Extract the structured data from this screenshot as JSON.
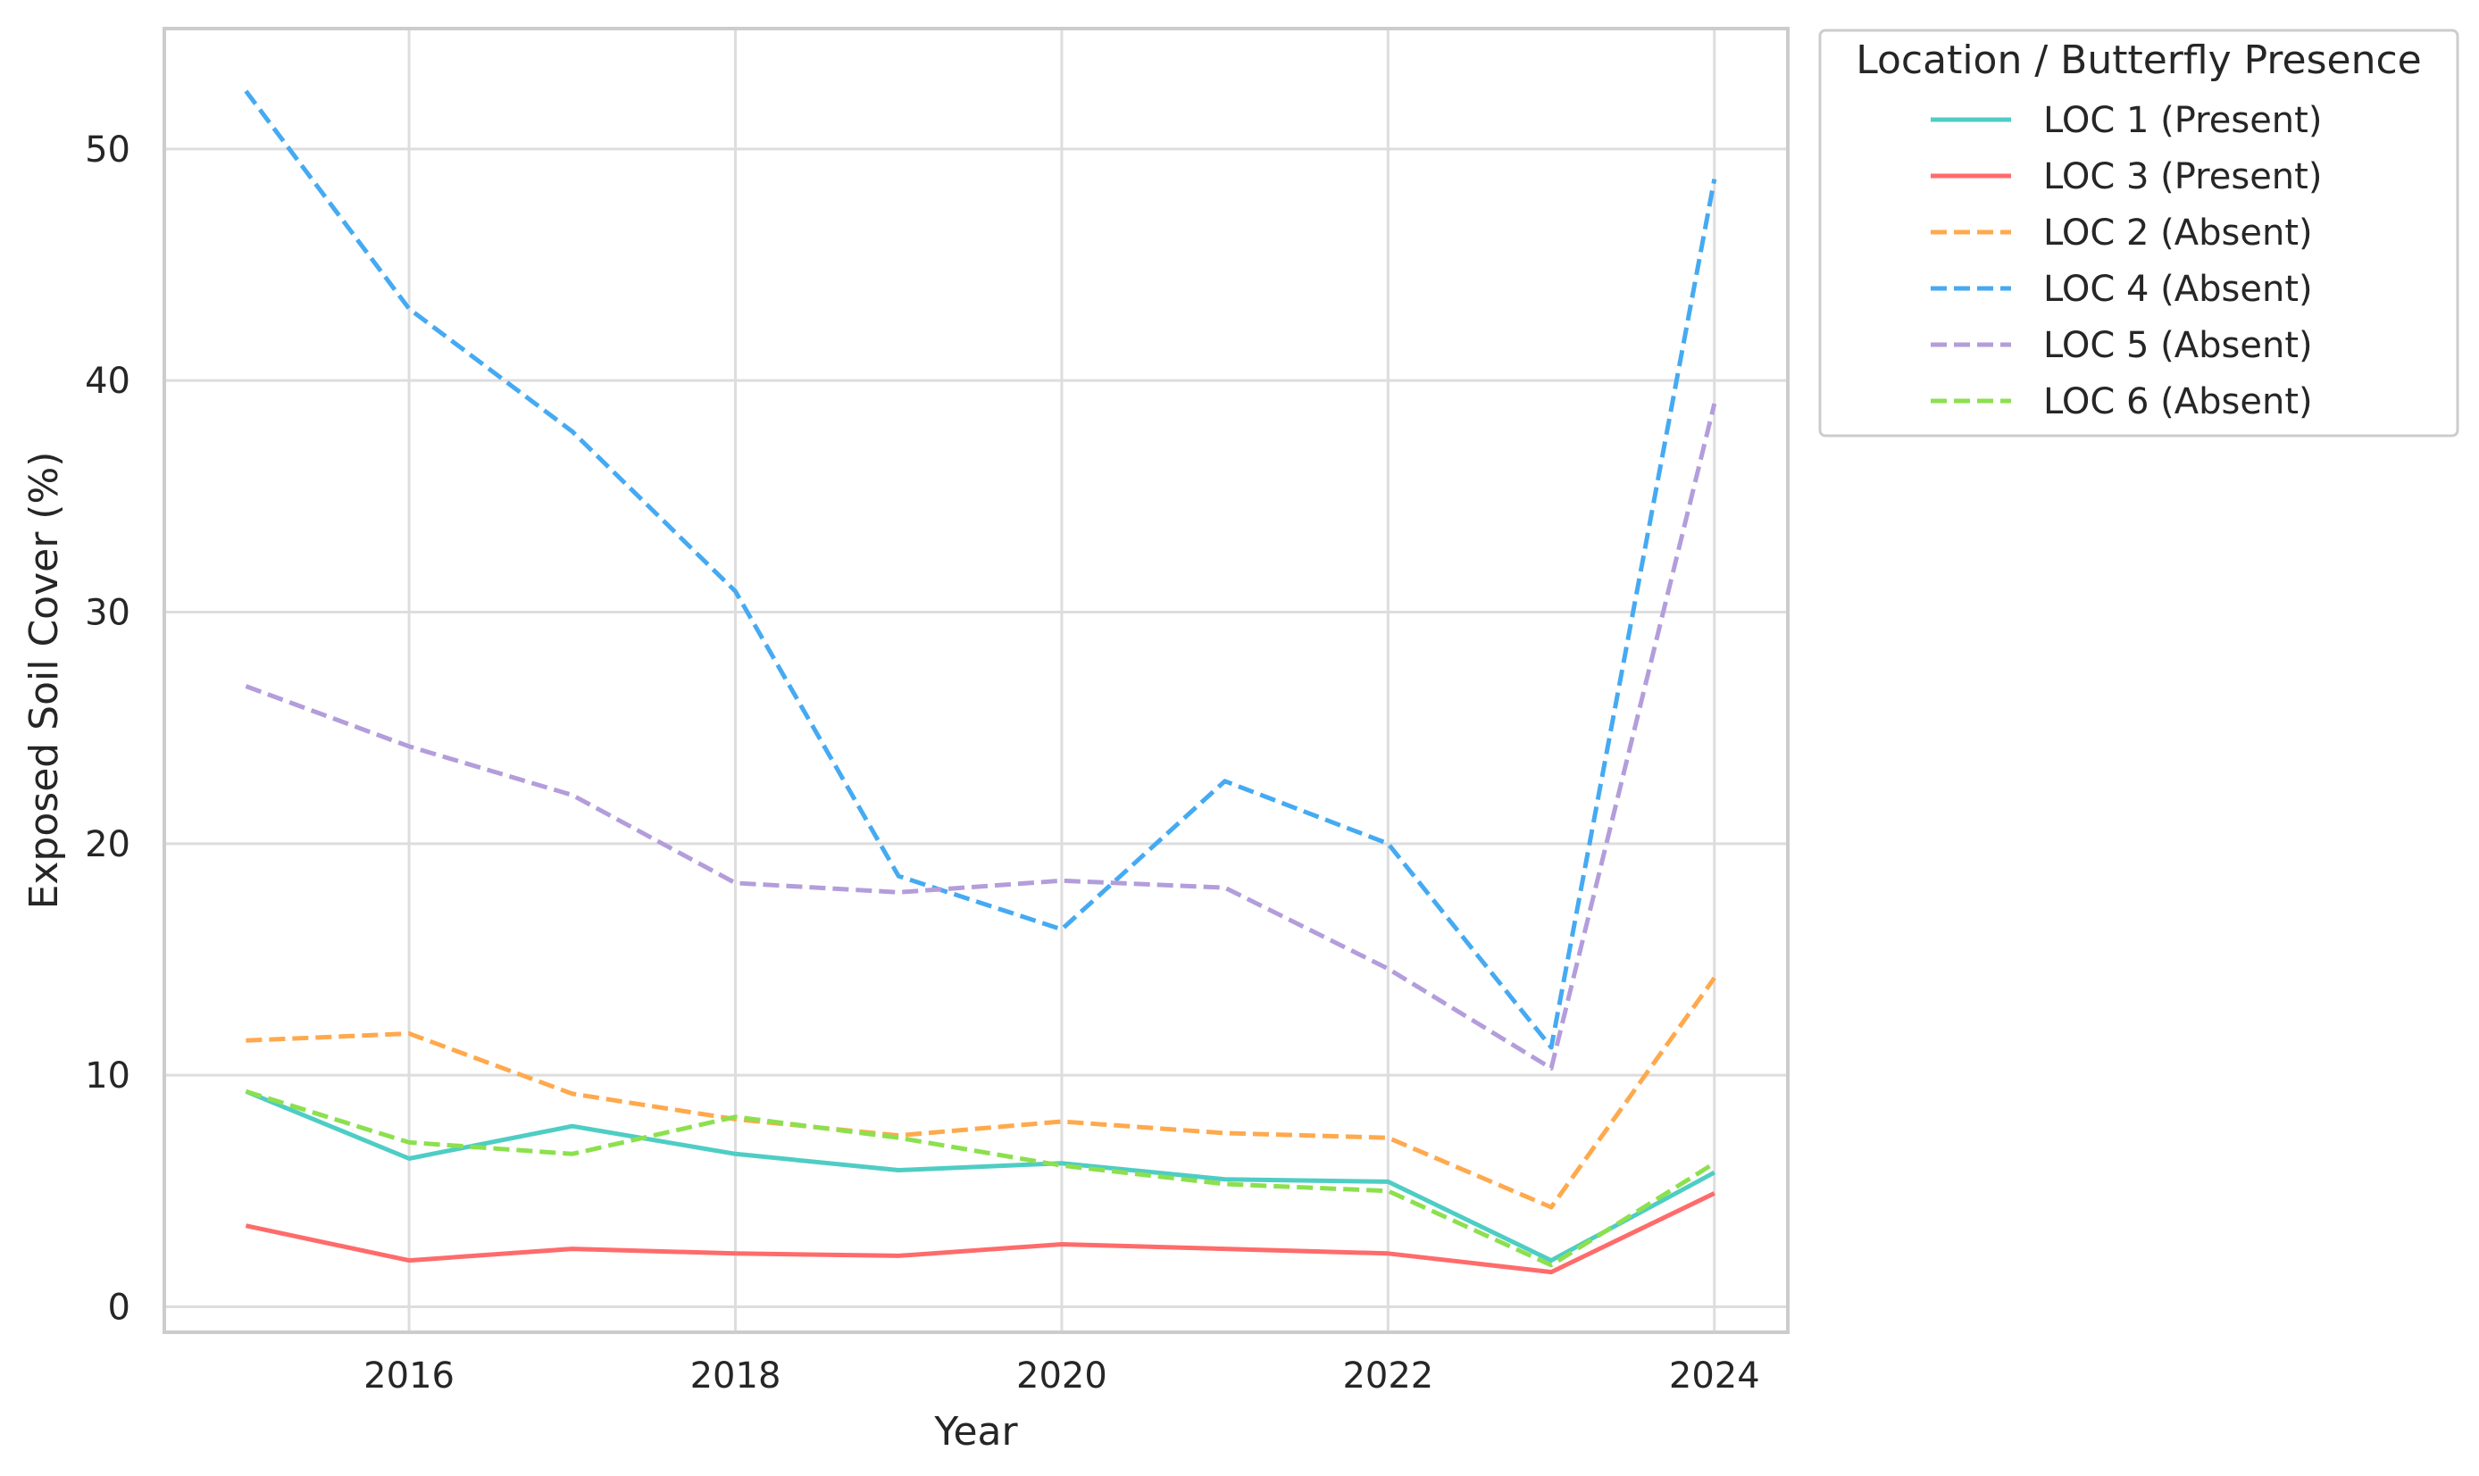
{
  "chart_data": {
    "type": "line",
    "xlabel": "Year",
    "ylabel": "Exposed Soil Cover (%)",
    "x": [
      2015,
      2016,
      2017,
      2018,
      2019,
      2020,
      2021,
      2022,
      2023,
      2024
    ],
    "xlim": [
      2014.5,
      2024.45
    ],
    "ylim": [
      -1.1,
      55.2
    ],
    "xticks": [
      2016,
      2018,
      2020,
      2022,
      2024
    ],
    "yticks": [
      0,
      10,
      20,
      30,
      40,
      50
    ],
    "grid": true,
    "legend": {
      "title": "Location / Butterfly Presence",
      "placement": "outside-top-right"
    },
    "series": [
      {
        "name": "LOC 1 (Present)",
        "color": "#4ecdc4",
        "dash": "solid",
        "values": [
          9.3,
          6.4,
          7.8,
          6.6,
          5.9,
          6.2,
          5.5,
          5.4,
          2.0,
          5.8
        ]
      },
      {
        "name": "LOC 3 (Present)",
        "color": "#ff6b6b",
        "dash": "solid",
        "values": [
          3.5,
          2.0,
          2.5,
          2.3,
          2.2,
          2.7,
          2.5,
          2.3,
          1.5,
          4.9
        ]
      },
      {
        "name": "LOC 2 (Absent)",
        "color": "#ffa94d",
        "dash": "dashed",
        "values": [
          11.5,
          11.8,
          9.2,
          8.1,
          7.4,
          8.0,
          7.5,
          7.3,
          4.3,
          14.2
        ]
      },
      {
        "name": "LOC 4 (Absent)",
        "color": "#45aaf2",
        "dash": "dashed",
        "values": [
          52.5,
          43.1,
          37.8,
          30.9,
          18.6,
          16.3,
          22.7,
          20.0,
          11.2,
          48.7
        ]
      },
      {
        "name": "LOC 5 (Absent)",
        "color": "#b39ddb",
        "dash": "dashed",
        "values": [
          26.8,
          24.2,
          22.1,
          18.3,
          17.9,
          18.4,
          18.1,
          14.6,
          10.3,
          39.0
        ]
      },
      {
        "name": "LOC 6 (Absent)",
        "color": "#8ce04e",
        "dash": "dashed",
        "values": [
          9.3,
          7.1,
          6.6,
          8.2,
          7.3,
          6.1,
          5.3,
          5.0,
          1.8,
          6.2
        ]
      }
    ]
  }
}
